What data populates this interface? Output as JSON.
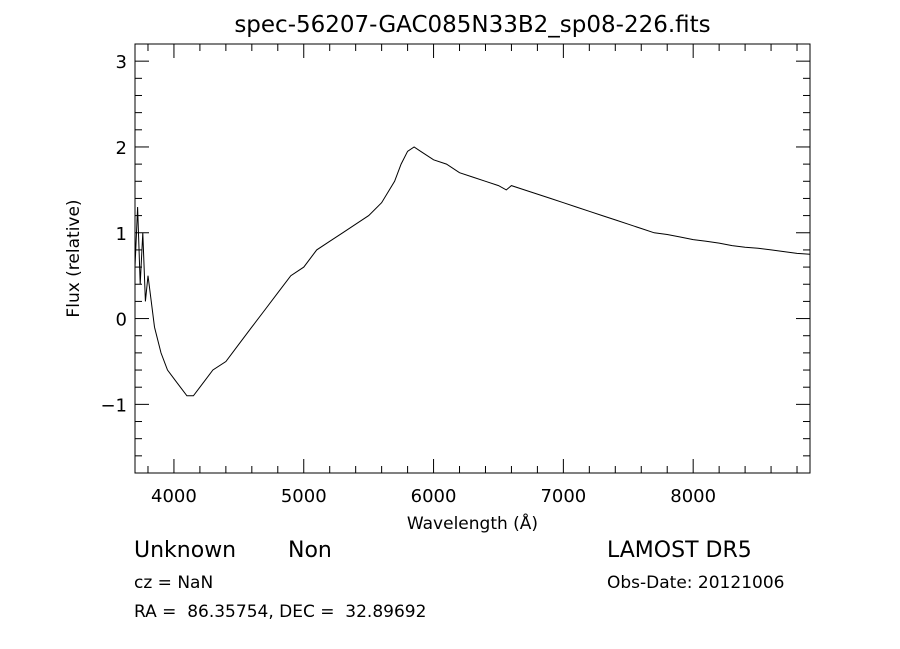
{
  "chart_data": {
    "type": "line",
    "title": "spec-56207-GAC085N33B2_sp08-226.fits",
    "xlabel": "Wavelength (Å)",
    "ylabel": "Flux (relative)",
    "xlim": [
      3700,
      8900
    ],
    "ylim": [
      -1.8,
      3.2
    ],
    "x_ticks": [
      4000,
      5000,
      6000,
      7000,
      8000
    ],
    "x_tick_labels": [
      "4000",
      "5000",
      "6000",
      "7000",
      "8000"
    ],
    "y_ticks": [
      -1,
      0,
      1,
      2,
      3
    ],
    "y_tick_labels": [
      "−1",
      "0",
      "1",
      "2",
      "3"
    ],
    "grid": false,
    "series": [
      {
        "color": "#000000",
        "x": [
          3700,
          3720,
          3740,
          3760,
          3780,
          3800,
          3850,
          3900,
          3950,
          4000,
          4050,
          4100,
          4150,
          4200,
          4300,
          4400,
          4500,
          4600,
          4700,
          4800,
          4900,
          5000,
          5100,
          5200,
          5300,
          5400,
          5500,
          5600,
          5700,
          5750,
          5800,
          5850,
          5900,
          6000,
          6100,
          6200,
          6300,
          6400,
          6500,
          6560,
          6600,
          6700,
          6800,
          6900,
          7000,
          7100,
          7200,
          7300,
          7400,
          7500,
          7600,
          7700,
          7800,
          7900,
          8000,
          8100,
          8200,
          8300,
          8400,
          8500,
          8600,
          8700,
          8800,
          8900
        ],
        "y": [
          0.6,
          1.3,
          0.4,
          1.0,
          0.2,
          0.5,
          -0.1,
          -0.4,
          -0.6,
          -0.7,
          -0.8,
          -0.9,
          -0.9,
          -0.8,
          -0.6,
          -0.5,
          -0.3,
          -0.1,
          0.1,
          0.3,
          0.5,
          0.6,
          0.8,
          0.9,
          1.0,
          1.1,
          1.2,
          1.35,
          1.6,
          1.8,
          1.95,
          2.0,
          1.95,
          1.85,
          1.8,
          1.7,
          1.65,
          1.6,
          1.55,
          1.5,
          1.55,
          1.5,
          1.45,
          1.4,
          1.35,
          1.3,
          1.25,
          1.2,
          1.15,
          1.1,
          1.05,
          1.0,
          0.98,
          0.95,
          0.92,
          0.9,
          0.88,
          0.85,
          0.83,
          0.82,
          0.8,
          0.78,
          0.76,
          0.75
        ]
      }
    ]
  },
  "info": {
    "object_class": "Unknown",
    "object_subclass": "Non",
    "survey": "LAMOST DR5",
    "cz": "cz = NaN",
    "obs_date": "Obs-Date: 20121006",
    "coords": "RA =  86.35754, DEC =  32.89692"
  }
}
